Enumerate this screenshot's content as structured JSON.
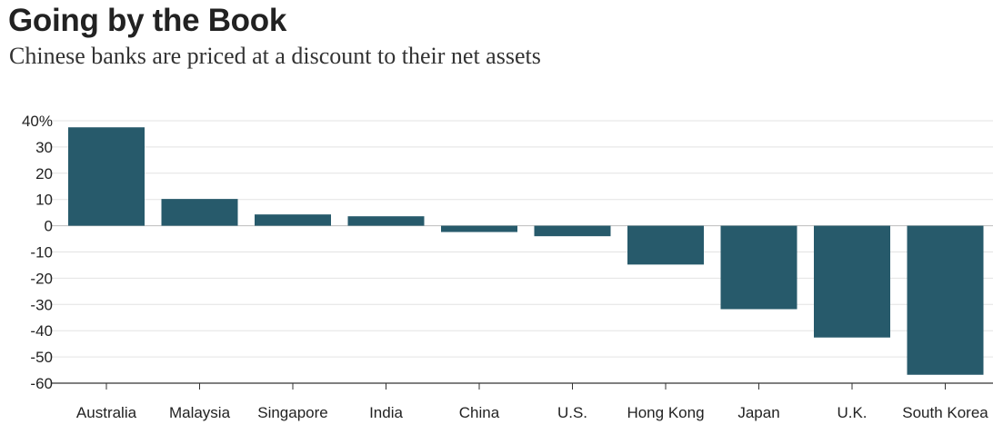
{
  "chart_data": {
    "type": "bar",
    "title": "Going by the Book",
    "subtitle": "Chinese banks are priced at a discount to their net assets",
    "categories": [
      "Australia",
      "Malaysia",
      "Singapore",
      "India",
      "China",
      "U.S.",
      "Hong Kong",
      "Japan",
      "U.K.",
      "South Korea"
    ],
    "values": [
      37.5,
      10.2,
      4.3,
      3.6,
      -2.4,
      -4,
      -14.8,
      -31.8,
      -42.6,
      -56.8
    ],
    "yticks": [
      "40%",
      "30",
      "20",
      "10",
      "0",
      "-10",
      "-20",
      "-30",
      "-40",
      "-50",
      "-60"
    ],
    "ylim": [
      -60,
      40
    ],
    "grid": true,
    "bar_color": "#275a6b"
  }
}
